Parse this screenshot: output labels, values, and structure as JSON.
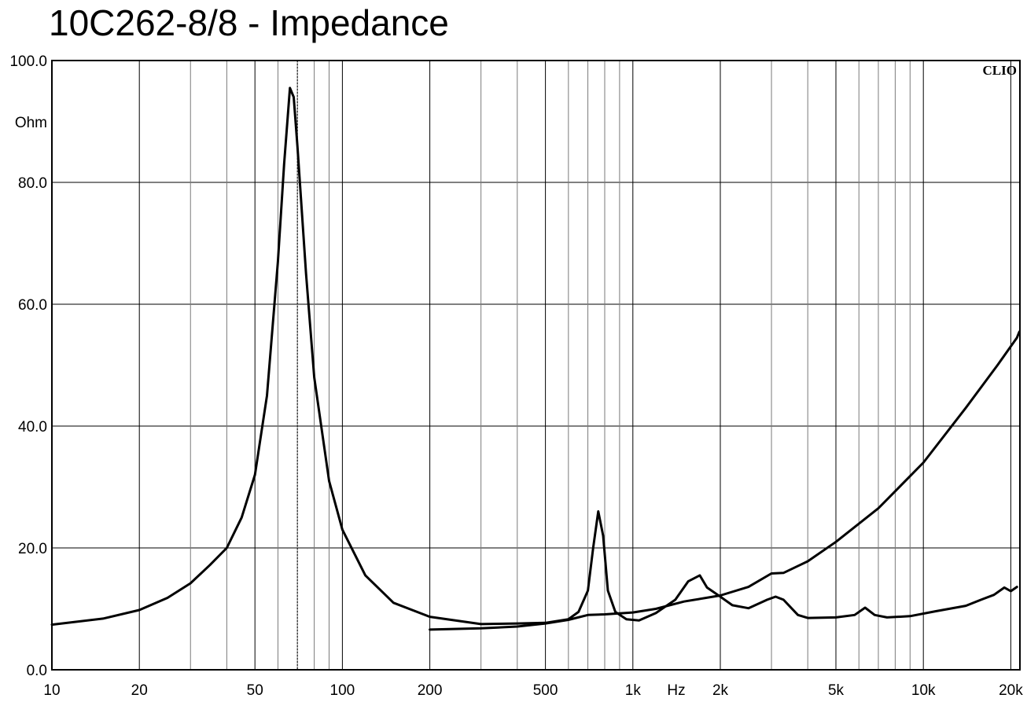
{
  "title": "10C262-8/8 - Impedance",
  "watermark": "CLIO",
  "chart_data": {
    "type": "line",
    "title": "10C262-8/8 - Impedance",
    "xlabel": "Hz",
    "ylabel": "Ohm",
    "x_scale": "log",
    "xlim": [
      10,
      21500
    ],
    "ylim": [
      0,
      100
    ],
    "grid": true,
    "y_ticks": [
      {
        "value": 0,
        "label": "0.0"
      },
      {
        "value": 20,
        "label": "20.0"
      },
      {
        "value": 40,
        "label": "40.0"
      },
      {
        "value": 60,
        "label": "60.0"
      },
      {
        "value": 80,
        "label": "80.0"
      },
      {
        "value": 100,
        "label": "100.0"
      }
    ],
    "x_ticks": [
      {
        "value": 10,
        "label": "10"
      },
      {
        "value": 20,
        "label": "20"
      },
      {
        "value": 50,
        "label": "50"
      },
      {
        "value": 100,
        "label": "100"
      },
      {
        "value": 200,
        "label": "200"
      },
      {
        "value": 500,
        "label": "500"
      },
      {
        "value": 1000,
        "label": "1k"
      },
      {
        "value": 2000,
        "label": "2k"
      },
      {
        "value": 5000,
        "label": "5k"
      },
      {
        "value": 10000,
        "label": "10k"
      },
      {
        "value": 20000,
        "label": "20k"
      }
    ],
    "x_minor_grid": [
      30,
      40,
      60,
      70,
      80,
      90,
      300,
      400,
      600,
      700,
      800,
      900,
      3000,
      4000,
      6000,
      7000,
      8000,
      9000
    ],
    "marker_x": 70,
    "series": [
      {
        "values": [
          [
            10,
            7.4
          ],
          [
            15,
            8.4
          ],
          [
            20,
            9.8
          ],
          [
            25,
            11.8
          ],
          [
            30,
            14.2
          ],
          [
            35,
            17.2
          ],
          [
            40,
            20.0
          ],
          [
            45,
            25.0
          ],
          [
            50,
            32.0
          ],
          [
            55,
            45.0
          ],
          [
            60,
            67.0
          ],
          [
            63,
            83.0
          ],
          [
            66,
            95.5
          ],
          [
            68,
            94.0
          ],
          [
            70,
            86.0
          ],
          [
            75,
            65.0
          ],
          [
            80,
            48.0
          ],
          [
            90,
            31.0
          ],
          [
            100,
            23.0
          ],
          [
            120,
            15.5
          ],
          [
            150,
            11.0
          ],
          [
            200,
            8.7
          ],
          [
            300,
            7.5
          ],
          [
            400,
            7.6
          ],
          [
            500,
            7.7
          ],
          [
            600,
            8.3
          ],
          [
            650,
            9.5
          ],
          [
            700,
            13.0
          ],
          [
            730,
            20.0
          ],
          [
            760,
            26.0
          ],
          [
            790,
            22.0
          ],
          [
            820,
            13.0
          ],
          [
            870,
            9.5
          ],
          [
            950,
            8.3
          ],
          [
            1050,
            8.1
          ],
          [
            1200,
            9.3
          ],
          [
            1400,
            11.5
          ],
          [
            1550,
            14.5
          ],
          [
            1700,
            15.5
          ],
          [
            1800,
            13.5
          ],
          [
            2000,
            12.0
          ],
          [
            2200,
            10.6
          ],
          [
            2500,
            10.1
          ],
          [
            2900,
            11.5
          ],
          [
            3100,
            12.0
          ],
          [
            3300,
            11.5
          ],
          [
            3700,
            9.0
          ],
          [
            4000,
            8.5
          ],
          [
            5000,
            8.6
          ],
          [
            5800,
            9.0
          ],
          [
            6300,
            10.2
          ],
          [
            6800,
            9.0
          ],
          [
            7500,
            8.6
          ],
          [
            9000,
            8.8
          ],
          [
            11000,
            9.6
          ],
          [
            14000,
            10.5
          ],
          [
            16000,
            11.6
          ],
          [
            17500,
            12.3
          ],
          [
            19000,
            13.5
          ],
          [
            20000,
            12.9
          ],
          [
            21000,
            13.6
          ]
        ]
      },
      {
        "values": [
          [
            200,
            6.6
          ],
          [
            300,
            6.8
          ],
          [
            400,
            7.1
          ],
          [
            500,
            7.6
          ],
          [
            600,
            8.2
          ],
          [
            700,
            9.0
          ],
          [
            800,
            9.1
          ],
          [
            1000,
            9.4
          ],
          [
            1200,
            10.0
          ],
          [
            1500,
            11.2
          ],
          [
            2000,
            12.2
          ],
          [
            2500,
            13.6
          ],
          [
            3000,
            15.8
          ],
          [
            3300,
            15.9
          ],
          [
            4000,
            17.8
          ],
          [
            5000,
            21.0
          ],
          [
            7000,
            26.5
          ],
          [
            10000,
            34.0
          ],
          [
            14000,
            43.0
          ],
          [
            18000,
            50.0
          ],
          [
            21000,
            54.5
          ],
          [
            21400,
            55.5
          ]
        ]
      }
    ]
  }
}
